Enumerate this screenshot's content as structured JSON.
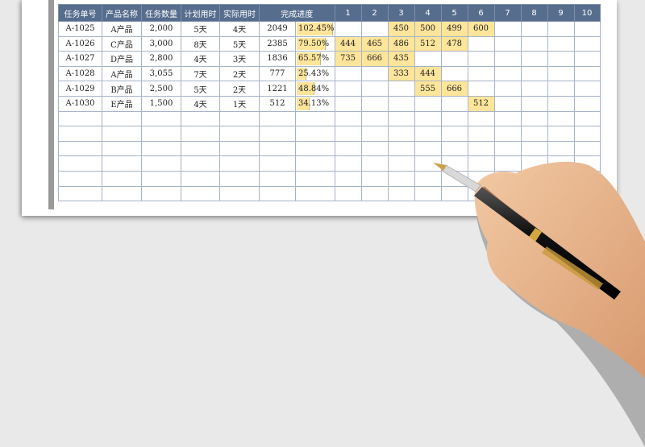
{
  "headers": [
    "任务单号",
    "产品名称",
    "任务数量",
    "计划用时",
    "实际用时",
    "完成进度",
    "1",
    "2",
    "3",
    "4",
    "5",
    "6",
    "7",
    "8",
    "9",
    "10"
  ],
  "rows": [
    {
      "id": "A-1025",
      "product": "A产品",
      "qty": "2,000",
      "plan": "5天",
      "actual": "4天",
      "done": "2049",
      "pct": "102.45%",
      "pct_value": 102.45,
      "days": [
        "",
        "",
        "450",
        "500",
        "499",
        "600",
        "",
        "",
        "",
        ""
      ]
    },
    {
      "id": "A-1026",
      "product": "C产品",
      "qty": "3,000",
      "plan": "8天",
      "actual": "5天",
      "done": "2385",
      "pct": "79.50%",
      "pct_value": 79.5,
      "days": [
        "444",
        "465",
        "486",
        "512",
        "478",
        "",
        "",
        "",
        "",
        ""
      ]
    },
    {
      "id": "A-1027",
      "product": "D产品",
      "qty": "2,800",
      "plan": "4天",
      "actual": "3天",
      "done": "1836",
      "pct": "65.57%",
      "pct_value": 65.57,
      "days": [
        "735",
        "666",
        "435",
        "",
        "",
        "",
        "",
        "",
        "",
        ""
      ]
    },
    {
      "id": "A-1028",
      "product": "A产品",
      "qty": "3,055",
      "plan": "7天",
      "actual": "2天",
      "done": "777",
      "pct": "25.43%",
      "pct_value": 25.43,
      "days": [
        "",
        "",
        "333",
        "444",
        "",
        "",
        "",
        "",
        "",
        ""
      ]
    },
    {
      "id": "A-1029",
      "product": "B产品",
      "qty": "2,500",
      "plan": "5天",
      "actual": "2天",
      "done": "1221",
      "pct": "48.84%",
      "pct_value": 48.84,
      "days": [
        "",
        "",
        "",
        "555",
        "666",
        "",
        "",
        "",
        "",
        ""
      ]
    },
    {
      "id": "A-1030",
      "product": "E产品",
      "qty": "1,500",
      "plan": "4天",
      "actual": "1天",
      "done": "512",
      "pct": "34.13%",
      "pct_value": 34.13,
      "days": [
        "",
        "",
        "",
        "",
        "",
        "512",
        "",
        "",
        "",
        ""
      ]
    }
  ],
  "empty_rows": 6,
  "colors": {
    "header": "#566d8e",
    "highlight": "#ffe59a",
    "grid": "#a7b4c8"
  }
}
